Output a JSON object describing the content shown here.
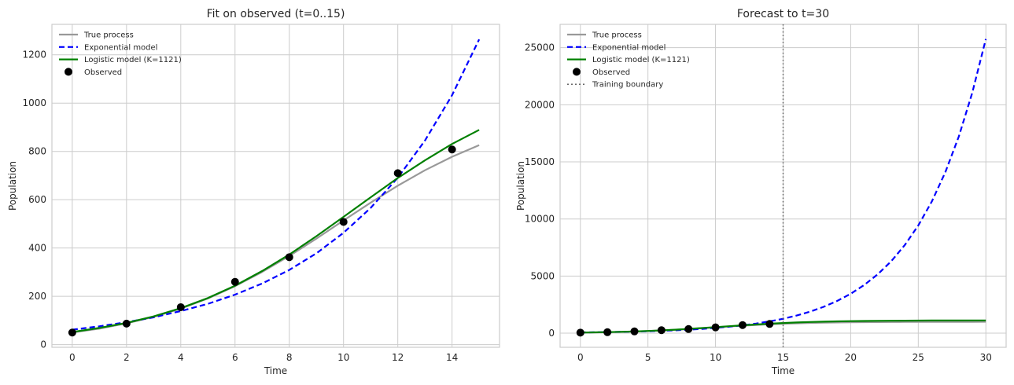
{
  "chart_data": [
    {
      "type": "line",
      "title": "Fit on observed (t=0..15)",
      "xlabel": "Time",
      "ylabel": "Population",
      "xlim": [
        -0.75,
        15.75
      ],
      "ylim": [
        -11,
        1326
      ],
      "xticks": [
        0,
        2,
        4,
        6,
        8,
        10,
        12,
        14
      ],
      "yticks": [
        0,
        200,
        400,
        600,
        800,
        1000,
        1200
      ],
      "grid": true,
      "legend": "top-left",
      "series": [
        {
          "name": "True process",
          "color": "#999999",
          "style": "solid",
          "x": [
            0,
            1,
            2,
            3,
            4,
            5,
            6,
            7,
            8,
            9,
            10,
            11,
            12,
            13,
            14,
            15
          ],
          "y": [
            50,
            66,
            88,
            115,
            149,
            191,
            242,
            301,
            367,
            439,
            514,
            588,
            658,
            722,
            778,
            826
          ]
        },
        {
          "name": "Exponential model",
          "color": "#0000ff",
          "style": "dashed",
          "x": [
            0,
            1,
            2,
            3,
            4,
            5,
            6,
            7,
            8,
            9,
            10,
            11,
            12,
            13,
            14,
            15
          ],
          "y": [
            62,
            76,
            93,
            113,
            139,
            169,
            207,
            253,
            309,
            378,
            463,
            566,
            691,
            845,
            1033,
            1264
          ]
        },
        {
          "name": "Logistic model (K=1121)",
          "color": "#008000",
          "style": "solid",
          "x": [
            0,
            1,
            2,
            3,
            4,
            5,
            6,
            7,
            8,
            9,
            10,
            11,
            12,
            13,
            14,
            15
          ],
          "y": [
            52,
            69,
            90,
            117,
            151,
            193,
            244,
            305,
            373,
            449,
            529,
            610,
            690,
            763,
            831,
            889
          ]
        },
        {
          "name": "Observed",
          "color": "#000000",
          "style": "markers",
          "x": [
            0,
            2,
            4,
            6,
            8,
            10,
            12,
            14
          ],
          "y": [
            50,
            87,
            155,
            260,
            362,
            508,
            710,
            808
          ]
        }
      ]
    },
    {
      "type": "line",
      "title": "Forecast to t=30",
      "xlabel": "Time",
      "ylabel": "Population",
      "xlim": [
        -1.5,
        31.5
      ],
      "ylim": [
        -1235,
        27040
      ],
      "xticks": [
        0,
        5,
        10,
        15,
        20,
        25,
        30
      ],
      "yticks": [
        0,
        5000,
        10000,
        15000,
        20000,
        25000
      ],
      "grid": true,
      "legend": "top-left",
      "vline": {
        "name": "Training boundary",
        "x": 15,
        "color": "#666666",
        "style": "dotted"
      },
      "series": [
        {
          "name": "True process",
          "color": "#999999",
          "style": "solid",
          "x": [
            0,
            1,
            2,
            3,
            4,
            5,
            6,
            7,
            8,
            9,
            10,
            11,
            12,
            13,
            14,
            15,
            16,
            17,
            18,
            19,
            20,
            21,
            22,
            23,
            24,
            25,
            26,
            27,
            28,
            29,
            30
          ],
          "y": [
            50,
            66,
            88,
            115,
            149,
            191,
            242,
            301,
            367,
            439,
            514,
            588,
            658,
            722,
            778,
            826,
            865,
            896,
            921,
            940,
            955,
            966,
            975,
            981,
            986,
            990,
            992,
            994,
            996,
            997,
            998
          ]
        },
        {
          "name": "Exponential model",
          "color": "#0000ff",
          "style": "dashed",
          "x": [
            0,
            1,
            2,
            3,
            4,
            5,
            6,
            7,
            8,
            9,
            10,
            11,
            12,
            13,
            14,
            15,
            16,
            17,
            18,
            19,
            20,
            21,
            22,
            23,
            24,
            25,
            26,
            27,
            28,
            29,
            30
          ],
          "y": [
            62,
            76,
            93,
            113,
            139,
            169,
            207,
            253,
            309,
            378,
            463,
            566,
            691,
            845,
            1033,
            1264,
            1545,
            1889,
            2309,
            2823,
            3451,
            4219,
            5159,
            6307,
            7711,
            9428,
            11526,
            14092,
            17229,
            21064,
            25754
          ]
        },
        {
          "name": "Logistic model (K=1121)",
          "color": "#008000",
          "style": "solid",
          "x": [
            0,
            1,
            2,
            3,
            4,
            5,
            6,
            7,
            8,
            9,
            10,
            11,
            12,
            13,
            14,
            15,
            16,
            17,
            18,
            19,
            20,
            21,
            22,
            23,
            24,
            25,
            26,
            27,
            28,
            29,
            30
          ],
          "y": [
            52,
            69,
            90,
            117,
            151,
            193,
            244,
            305,
            373,
            449,
            529,
            610,
            690,
            763,
            831,
            889,
            938,
            977,
            1011,
            1036,
            1057,
            1072,
            1084,
            1093,
            1100,
            1105,
            1109,
            1112,
            1114,
            1116,
            1117
          ]
        },
        {
          "name": "Observed",
          "color": "#000000",
          "style": "markers",
          "x": [
            0,
            2,
            4,
            6,
            8,
            10,
            12,
            14
          ],
          "y": [
            50,
            87,
            155,
            260,
            362,
            508,
            710,
            808
          ]
        }
      ]
    }
  ]
}
